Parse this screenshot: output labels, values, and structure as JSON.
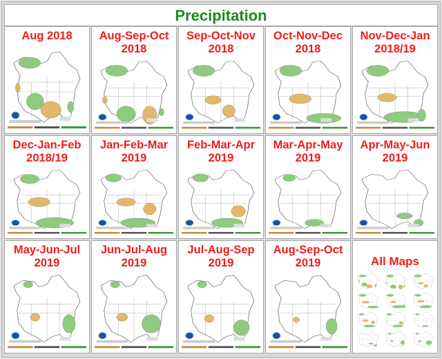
{
  "header": {
    "title": "Precipitation"
  },
  "colors": {
    "title": "#1a8a1a",
    "label": "#ee1c1c",
    "above": "#8fca7e",
    "below": "#e2b86a"
  },
  "maps": [
    {
      "label": "Aug 2018",
      "blobs": [
        [
          "g",
          28,
          22,
          14,
          8
        ],
        [
          "t",
          13,
          58,
          3,
          7
        ],
        [
          "g",
          35,
          78,
          11,
          12
        ],
        [
          "t",
          55,
          90,
          13,
          12
        ],
        [
          "g",
          80,
          86,
          4,
          8
        ]
      ]
    },
    {
      "label": "Aug-Sep-Oct 2018",
      "blobs": [
        [
          "g",
          28,
          22,
          14,
          9
        ],
        [
          "t",
          13,
          70,
          3,
          6
        ],
        [
          "g",
          40,
          93,
          12,
          13
        ],
        [
          "t",
          70,
          95,
          9,
          15
        ],
        [
          "g",
          85,
          90,
          3,
          6
        ]
      ]
    },
    {
      "label": "Sep-Oct-Nov 2018",
      "blobs": [
        [
          "g",
          28,
          22,
          14,
          9
        ],
        [
          "t",
          40,
          70,
          10,
          7
        ],
        [
          "t",
          60,
          88,
          8,
          10
        ]
      ]
    },
    {
      "label": "Oct-Nov-Dec 2018",
      "blobs": [
        [
          "g",
          28,
          22,
          14,
          9
        ],
        [
          "t",
          40,
          68,
          14,
          8
        ],
        [
          "g",
          70,
          100,
          22,
          8
        ]
      ]
    },
    {
      "label": "Nov-Dec-Jan 2018/19",
      "blobs": [
        [
          "g",
          28,
          22,
          14,
          9
        ],
        [
          "t",
          40,
          66,
          12,
          7
        ],
        [
          "g",
          62,
          98,
          26,
          9
        ],
        [
          "g",
          84,
          95,
          5,
          10
        ]
      ]
    },
    {
      "label": "Dec-Jan-Feb 2018/19",
      "blobs": [
        [
          "g",
          28,
          22,
          12,
          8
        ],
        [
          "t",
          40,
          62,
          14,
          8
        ],
        [
          "g",
          60,
          98,
          24,
          9
        ]
      ]
    },
    {
      "label": "Jan-Feb-Mar 2019",
      "blobs": [
        [
          "g",
          24,
          20,
          10,
          7
        ],
        [
          "t",
          40,
          62,
          12,
          7
        ],
        [
          "t",
          70,
          74,
          8,
          10
        ],
        [
          "g",
          55,
          98,
          22,
          8
        ]
      ]
    },
    {
      "label": "Feb-Mar-Apr 2019",
      "blobs": [
        [
          "g",
          24,
          20,
          10,
          7
        ],
        [
          "t",
          72,
          78,
          9,
          10
        ],
        [
          "g",
          58,
          98,
          20,
          8
        ]
      ]
    },
    {
      "label": "Mar-Apr-May 2019",
      "blobs": [
        [
          "g",
          26,
          20,
          8,
          6
        ],
        [
          "g",
          58,
          98,
          12,
          6
        ]
      ]
    },
    {
      "label": "Apr-May-Jun 2019",
      "blobs": [
        [
          "g",
          62,
          86,
          10,
          5
        ],
        [
          "g",
          80,
          98,
          6,
          6
        ]
      ]
    },
    {
      "label": "May-Jun-Jul 2019",
      "blobs": [
        [
          "g",
          26,
          20,
          6,
          5
        ],
        [
          "t",
          35,
          70,
          6,
          6
        ],
        [
          "g",
          78,
          80,
          8,
          14
        ]
      ]
    },
    {
      "label": "Jun-Jul-Aug 2019",
      "blobs": [
        [
          "g",
          26,
          20,
          6,
          5
        ],
        [
          "t",
          35,
          70,
          7,
          6
        ],
        [
          "g",
          72,
          80,
          12,
          14
        ]
      ]
    },
    {
      "label": "Jul-Aug-Sep 2019",
      "blobs": [
        [
          "g",
          26,
          20,
          6,
          5
        ],
        [
          "t",
          35,
          72,
          6,
          6
        ],
        [
          "g",
          76,
          86,
          10,
          12
        ]
      ]
    },
    {
      "label": "Aug-Sep-Oct 2019",
      "blobs": [
        [
          "t",
          35,
          74,
          4,
          4
        ],
        [
          "g",
          80,
          84,
          7,
          12
        ]
      ]
    }
  ],
  "all_maps": {
    "label": "All Maps"
  }
}
